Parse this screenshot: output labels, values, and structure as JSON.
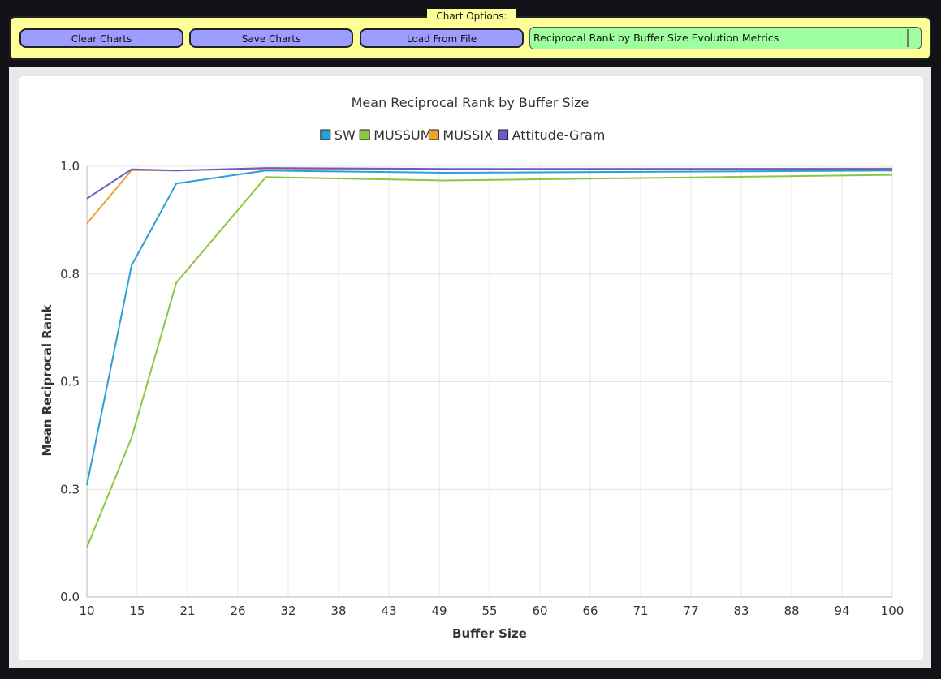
{
  "options": {
    "legend": "Chart Options:",
    "buttons": {
      "clear": "Clear Charts",
      "save": "Save Charts",
      "load": "Load From File"
    },
    "selected_chart": "Reciprocal Rank by Buffer Size Evolution Metrics"
  },
  "colors": {
    "panel_bg": "#ffff99",
    "button_bg": "#9d9dff",
    "select_bg": "#9dff9d",
    "app_bg": "#131218"
  },
  "chart_data": {
    "type": "line",
    "title": "Mean Reciprocal Rank by Buffer Size",
    "xlabel": "Buffer Size",
    "ylabel": "Mean Reciprocal Rank",
    "x_ticks": [
      "10",
      "15",
      "21",
      "26",
      "32",
      "38",
      "43",
      "49",
      "55",
      "60",
      "66",
      "71",
      "77",
      "83",
      "88",
      "94",
      "100"
    ],
    "y_ticks": [
      "0.0",
      "0.3",
      "0.5",
      "0.8",
      "1.0"
    ],
    "xlim": [
      10,
      100
    ],
    "ylim": [
      0,
      1
    ],
    "grid": true,
    "legend_position": "top",
    "series": [
      {
        "name": "SW",
        "color": "#2b9fd6",
        "x": [
          10,
          15,
          20,
          30,
          50,
          100
        ],
        "y": [
          0.26,
          0.77,
          0.96,
          0.99,
          0.985,
          0.99
        ]
      },
      {
        "name": "MUSSUM",
        "color": "#8dc63f",
        "x": [
          10,
          15,
          20,
          30,
          50,
          100
        ],
        "y": [
          0.115,
          0.37,
          0.73,
          0.975,
          0.967,
          0.98
        ]
      },
      {
        "name": "MUSSIX",
        "color": "#f0a12c",
        "x": [
          10,
          15,
          20,
          30,
          50,
          100
        ],
        "y": [
          0.867,
          0.991,
          0.99,
          0.995,
          0.993,
          0.995
        ]
      },
      {
        "name": "Attitude-Gram",
        "color": "#6a5acd",
        "x": [
          10,
          15,
          20,
          30,
          50,
          100
        ],
        "y": [
          0.925,
          0.993,
          0.99,
          0.996,
          0.994,
          0.994
        ]
      }
    ]
  }
}
